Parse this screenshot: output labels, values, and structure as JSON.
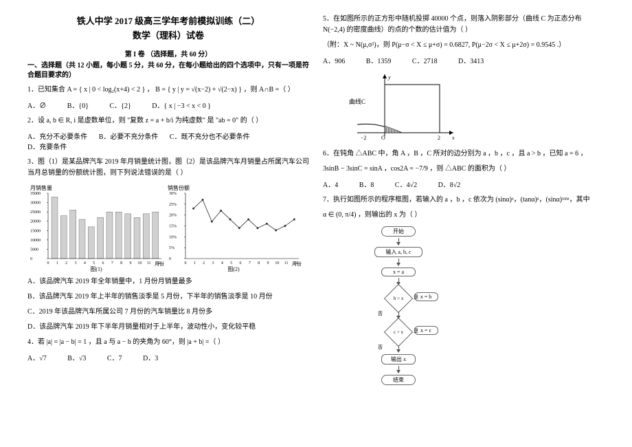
{
  "header": {
    "title": "铁人中学 2017 级高三学年考前模拟训练（二）",
    "subtitle": "数学（理科）试卷",
    "section": "第 I 卷  （选择题，共 60 分）",
    "instruction": "一、选择题（共 12 小题，每小题 5 分，共 60 分，在每小题给出的四个选项中，只有一项是符合题目要求的）"
  },
  "q1": {
    "text": "1．已知集合 A = { x | 0 < log₂(x+4) < 2 } ， B = { y | y = √(x−2) + √(2−x) } ，则 A∩B =（    ）",
    "a": "A．∅",
    "b": "B．{0}",
    "c": "C．{2}",
    "d": "D．{ x | −3 < x < 0 }"
  },
  "q2": {
    "text": "2．设 a, b ∈ R, i 是虚数单位，则 \"复数 z = a + b/i 为纯虚数\" 是 \"ab = 0\" 的（    ）",
    "a": "A．充分不必要条件",
    "b": "B．必要不充分条件",
    "c": "C．既不充分也不必要条件",
    "d": "D．充要条件"
  },
  "q3": {
    "text": "3．图（1）是某品牌汽车 2019 年月销量统计图，图（2）是该品牌汽车月销量占所属汽车公司当月总销量的份额统计图，则下列说法错误的是（    ）",
    "a": "A．该品牌汽车 2019 年全年销量中，1 月份月销量最多",
    "b": "B．该品牌汽车 2019 年上半年的销售淡季是 5 月份，下半年的销售淡季是 10 月份",
    "c": "C．2019 年该品牌汽车所属公司 7 月份的汽车销量比 8 月份多",
    "d": "D．该品牌汽车 2019 年下半年月销量相对于上半年，波动性小，变化较平稳"
  },
  "q4": {
    "text": "4．若 |a| = |a − b| = 1 ，且 a 与 a − b 的夹角为 60°，则 |a + b| =（    ）",
    "a": "A．√7",
    "b": "B．√3",
    "c": "C．7",
    "d": "D．3"
  },
  "q5": {
    "text": "5．在如图所示的正方形中随机投掷 40000 个点，则落入阴影部分（曲线 C 为正态分布 N(−2,4) 的密度曲线）的点的个数的估计值为（    ）",
    "note": "（附：X ~ N(μ,σ²)，则 P(μ−σ < X ≤ μ+σ) = 0.6827, P(μ−2σ < X ≤ μ+2σ) = 0.9545 .）",
    "a": "A．906",
    "b": "B．1359",
    "c": "C．2718",
    "d": "D．3413"
  },
  "q6": {
    "text": "6．在钝角 △ABC 中，角 A ，B ，C 所对的边分别为 a ，b ，c ，且 a > b ，已知 a = 6 ，",
    "text2": "3sinB − 3sinC = sinA ，cos2A = −7/9 ，则 △ABC 的面积为（    ）",
    "a": "A．4",
    "b": "B．8",
    "c": "C．4√2",
    "d": "D．8√2"
  },
  "q7": {
    "text": "7．执行如图所示的程序框图，若输入的 a ，b ，c 依次为 (sinα)ᵃ，(tanα)ᵃ，(sinα)ᵗᵃⁿᵃ，其中",
    "text2": "α ∈ (0, π/4) ，则输出的 x 为（    ）"
  },
  "bar_chart": {
    "title": "月销售量",
    "x_label": "月份",
    "x_ticks": [
      0,
      1,
      2,
      3,
      4,
      5,
      6,
      7,
      8,
      9,
      10,
      11,
      12
    ],
    "y_ticks": [
      0,
      5000,
      10000,
      15000,
      20000,
      25000,
      30000,
      35000
    ],
    "values": [
      33000,
      23000,
      26000,
      21000,
      17000,
      22000,
      25000,
      25000,
      24000,
      22000,
      24000,
      25000
    ],
    "bar_color": "#d0d0d0",
    "caption": "图(1)"
  },
  "line_chart": {
    "title": "销售份额",
    "x_label": "月份",
    "x_ticks": [
      0,
      1,
      2,
      3,
      4,
      5,
      6,
      7,
      8,
      9,
      10,
      11,
      12
    ],
    "y_ticks": [
      0,
      "5%",
      "10%",
      "15%",
      "20%",
      "25%",
      "30%"
    ],
    "values": [
      23,
      27,
      17,
      22,
      18,
      14,
      18,
      14,
      16,
      13,
      15,
      18
    ],
    "line_color": "#555555",
    "caption": "图(2)"
  },
  "normal_curve": {
    "axis_labels": {
      "x_left": "−2",
      "x_right": "2",
      "origin": "O",
      "y": "y",
      "x": "x"
    },
    "curve_label": "曲线C"
  },
  "flowchart": {
    "start": "开始",
    "input": "输入 a, b, c",
    "assign1": "x = a",
    "cond1": "b > x",
    "assign2": "x = b",
    "cond2": "c > x",
    "assign3": "x = c",
    "output": "输出 x",
    "end": "结束",
    "yes": "是",
    "no": "否"
  }
}
